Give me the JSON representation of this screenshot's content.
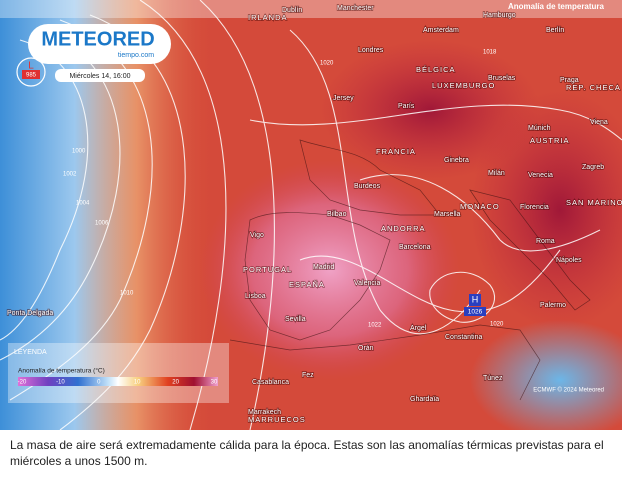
{
  "map": {
    "title": "Anomalía de temperatura",
    "brand": "METEORED",
    "brand_sub": "tiempo.com",
    "timestamp": "Miércoles 14, 16:00",
    "credit": "ECMWF © 2024 Meteored",
    "low": {
      "symbol": "L",
      "pressure": 985
    },
    "high": {
      "symbol": "H",
      "pressure": 1026
    },
    "isobar_labels": [
      1000,
      1002,
      1004,
      1006,
      1010,
      1020,
      1018,
      1022,
      1020
    ],
    "places": [
      "IRLANDA",
      "Dublín",
      "Manchester",
      "Londres",
      "Amsterdam",
      "Berlín",
      "Hamburgo",
      "BÉLGICA",
      "LUXEMBURGO",
      "Bruselas",
      "Praga",
      "REP. CHECA",
      "París",
      "Jersey",
      "FRANCIA",
      "AUSTRIA",
      "Viena",
      "Múnich",
      "Ginebra",
      "Milán",
      "Venecia",
      "Zagreb",
      "Burdeos",
      "Bilbao",
      "MONACO",
      "Marsella",
      "Florencia",
      "SAN MARINO",
      "Roma",
      "Nápoles",
      "ANDORRA",
      "Barcelona",
      "Vigo",
      "PORTUGAL",
      "ESPAÑA",
      "Madrid",
      "Valencia",
      "Lisboa",
      "Sevilla",
      "Ponta Delgada",
      "Orán",
      "Argel",
      "Constantina",
      "Túnez",
      "Palermo",
      "Casablanca",
      "Fez",
      "Marrakech",
      "MARRUECOS",
      "Ghardaïa"
    ]
  },
  "legend": {
    "title": "LEYENDA",
    "subtitle": "Anomalía de temperatura (°C)",
    "ticks": [
      -20,
      -10,
      0,
      10,
      20,
      30
    ]
  },
  "caption": "La masa de aire será extremadamente cálida para la época. Estas son las anomalías térmicas previstas para el miércoles a unos 1500 m."
}
